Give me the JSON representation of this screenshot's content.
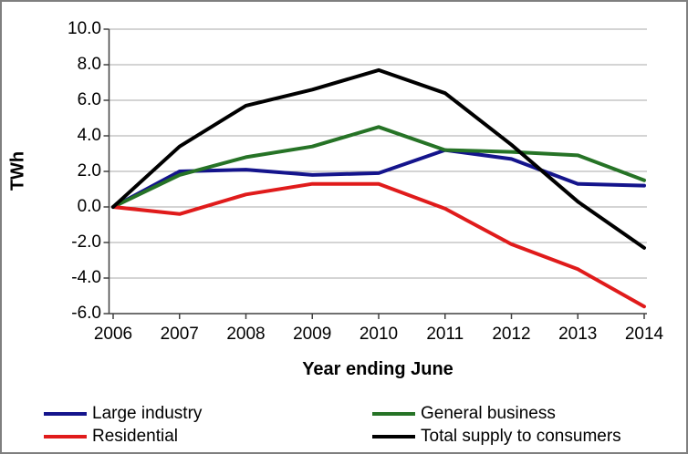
{
  "frame": {
    "background": "#ffffff",
    "border_color": "#7f7f7f"
  },
  "chart_data": {
    "type": "line",
    "title": "",
    "xlabel": "Year ending June",
    "ylabel": "TWh",
    "x": [
      2006,
      2007,
      2008,
      2009,
      2010,
      2011,
      2012,
      2013,
      2014
    ],
    "xtick_labels": [
      "2006",
      "2007",
      "2008",
      "2009",
      "2010",
      "2011",
      "2012",
      "2013",
      "2014"
    ],
    "ylim": [
      -6,
      10
    ],
    "yticks": [
      {
        "value": 10,
        "label": "10.0"
      },
      {
        "value": 8,
        "label": "8.0"
      },
      {
        "value": 6,
        "label": "6.0"
      },
      {
        "value": 4,
        "label": "4.0"
      },
      {
        "value": 2,
        "label": "2.0"
      },
      {
        "value": 0,
        "label": "0.0"
      },
      {
        "value": -2,
        "label": "-2.0"
      },
      {
        "value": -4,
        "label": "-4.0"
      },
      {
        "value": -6,
        "label": "-6.0"
      }
    ],
    "grid": true,
    "legend_position": "bottom",
    "series": [
      {
        "name": "Large industry",
        "color": "#14148c",
        "values": [
          0.0,
          2.0,
          2.1,
          1.8,
          1.9,
          3.2,
          2.7,
          1.3,
          1.2
        ]
      },
      {
        "name": "General business",
        "color": "#267326",
        "values": [
          0.0,
          1.8,
          2.8,
          3.4,
          4.5,
          3.2,
          3.1,
          2.9,
          1.5
        ]
      },
      {
        "name": "Residential",
        "color": "#e01b1b",
        "values": [
          0.0,
          -0.4,
          0.7,
          1.3,
          1.3,
          -0.1,
          -2.1,
          -3.5,
          -5.6
        ]
      },
      {
        "name": "Total supply to consumers",
        "color": "#000000",
        "values": [
          0.0,
          3.4,
          5.7,
          6.6,
          7.7,
          6.4,
          3.5,
          0.3,
          -2.3
        ]
      }
    ],
    "colors": {
      "gridline": "#a8a8a8",
      "axis": "#404040",
      "text": "#000000"
    }
  }
}
